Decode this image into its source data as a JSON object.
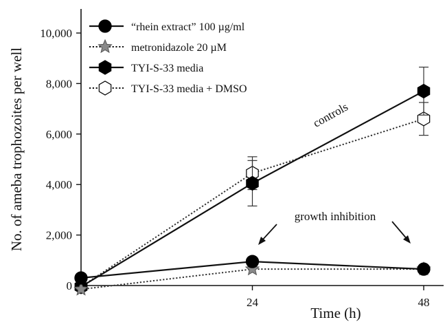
{
  "chart_data": {
    "type": "line",
    "xlabel": "Time (h)",
    "ylabel": "No. of ameba trophozoites per well",
    "xlim": [
      0,
      48
    ],
    "ylim": [
      0,
      10000
    ],
    "x_ticks": [
      {
        "value": 24,
        "label": "24"
      },
      {
        "value": 48,
        "label": "48"
      }
    ],
    "y_ticks": [
      {
        "value": 0,
        "label": "0"
      },
      {
        "value": 2000,
        "label": "2,000"
      },
      {
        "value": 4000,
        "label": "4,000"
      },
      {
        "value": 6000,
        "label": "6,000"
      },
      {
        "value": 8000,
        "label": "8,000"
      },
      {
        "value": 10000,
        "label": "10,000"
      }
    ],
    "legend_position": "top-left",
    "series": [
      {
        "name": "“rhein extract” 100 µg/ml",
        "marker": "circle",
        "marker_fill": "#000000",
        "line_style": "solid",
        "points": [
          {
            "x": 0,
            "y": 300
          },
          {
            "x": 24,
            "y": 950
          },
          {
            "x": 48,
            "y": 650
          }
        ]
      },
      {
        "name": "metronidazole 20 µM",
        "marker": "star",
        "marker_fill": "#8a8a8a",
        "line_style": "dotted",
        "points": [
          {
            "x": 0,
            "y": -150
          },
          {
            "x": 24,
            "y": 650
          },
          {
            "x": 48,
            "y": 650
          }
        ]
      },
      {
        "name": "TYI-S-33 media",
        "marker": "hexagon",
        "marker_fill": "#000000",
        "line_style": "solid",
        "points": [
          {
            "x": 0,
            "y": -50,
            "err": 0
          },
          {
            "x": 24,
            "y": 4050,
            "err": 900
          },
          {
            "x": 48,
            "y": 7700,
            "err": 950
          }
        ]
      },
      {
        "name": "TYI-S-33 media + DMSO",
        "marker": "hexagon",
        "marker_fill": "#ffffff",
        "line_style": "dotted",
        "points": [
          {
            "x": 0,
            "y": -50,
            "err": 0
          },
          {
            "x": 24,
            "y": 4450,
            "err": 650
          },
          {
            "x": 48,
            "y": 6600,
            "err": 650
          }
        ]
      }
    ],
    "annotations": {
      "controls": "controls",
      "growth_inhibition": "growth inhibition"
    }
  }
}
